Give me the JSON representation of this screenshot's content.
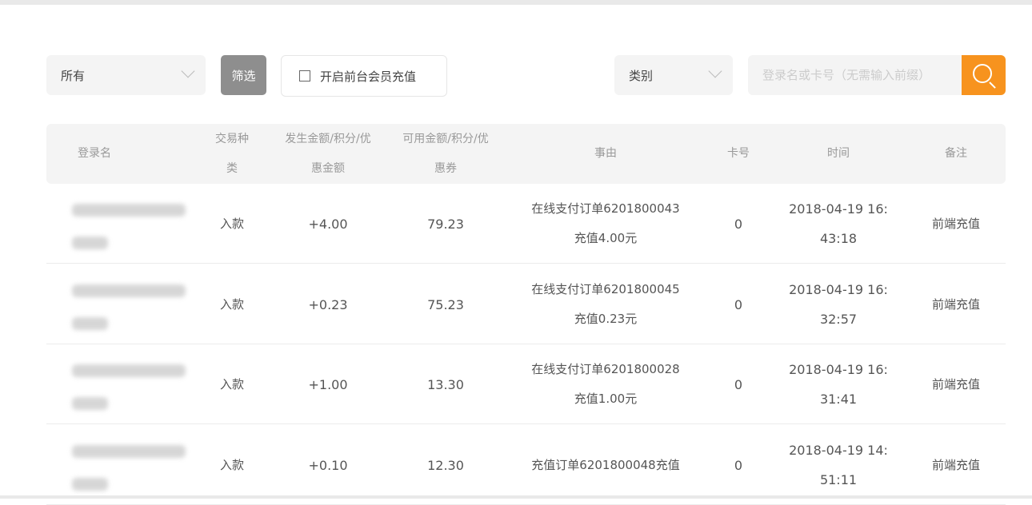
{
  "filters": {
    "scope_select": "所有",
    "filter_button": "筛选",
    "checkbox_label": "开启前台会员充值",
    "checkbox_checked": false,
    "category_select": "类别",
    "search_placeholder": "登录名或卡号（无需输入前缀）",
    "accent": "#f7931e"
  },
  "table": {
    "headers": {
      "login": "登录名",
      "type_1": "交易种",
      "type_2": "类",
      "amount_1": "发生金额/积分/优",
      "amount_2": "惠金额",
      "avail_1": "可用金额/积分/优",
      "avail_2": "惠券",
      "reason": "事由",
      "card": "卡号",
      "time": "时间",
      "note": "备注"
    },
    "rows": [
      {
        "type": "入款",
        "amount": "+4.00",
        "avail": "79.23",
        "reason_1": "在线支付订单6201800043",
        "reason_2": "充值4.00元",
        "card": "0",
        "time_1": "2018-04-19 16:",
        "time_2": "43:18",
        "note": "前端充值"
      },
      {
        "type": "入款",
        "amount": "+0.23",
        "avail": "75.23",
        "reason_1": "在线支付订单6201800045",
        "reason_2": "充值0.23元",
        "card": "0",
        "time_1": "2018-04-19 16:",
        "time_2": "32:57",
        "note": "前端充值"
      },
      {
        "type": "入款",
        "amount": "+1.00",
        "avail": "13.30",
        "reason_1": "在线支付订单6201800028",
        "reason_2": "充值1.00元",
        "card": "0",
        "time_1": "2018-04-19 16:",
        "time_2": "31:41",
        "note": "前端充值"
      },
      {
        "type": "入款",
        "amount": "+0.10",
        "avail": "12.30",
        "reason_1": "充值订单6201800048充值",
        "reason_2": "",
        "card": "0",
        "time_1": "2018-04-19 14:",
        "time_2": "51:11",
        "note": "前端充值"
      }
    ]
  }
}
